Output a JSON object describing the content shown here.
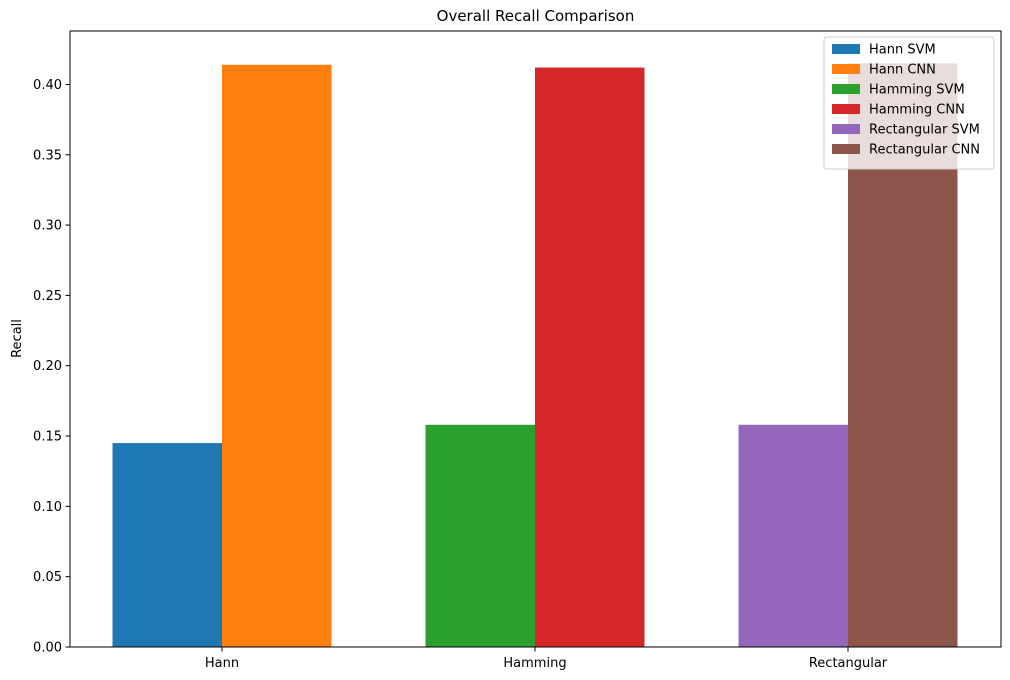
{
  "chart_data": {
    "type": "bar",
    "title": "Overall Recall Comparison",
    "xlabel": "",
    "ylabel": "Recall",
    "categories": [
      "Hann",
      "Hamming",
      "Rectangular"
    ],
    "ylim": [
      0,
      0.438
    ],
    "yticks": [
      "0.00",
      "0.05",
      "0.10",
      "0.15",
      "0.20",
      "0.25",
      "0.30",
      "0.35",
      "0.40"
    ],
    "grid": false,
    "legend_position": "top-right",
    "series": [
      {
        "name": "Hann SVM",
        "category": "Hann",
        "offset": "left",
        "value": 0.145,
        "color": "#1f77b4"
      },
      {
        "name": "Hann CNN",
        "category": "Hann",
        "offset": "right",
        "value": 0.414,
        "color": "#ff7f0e"
      },
      {
        "name": "Hamming SVM",
        "category": "Hamming",
        "offset": "left",
        "value": 0.158,
        "color": "#2ca02c"
      },
      {
        "name": "Hamming CNN",
        "category": "Hamming",
        "offset": "right",
        "value": 0.412,
        "color": "#d62728"
      },
      {
        "name": "Rectangular SVM",
        "category": "Rectangular",
        "offset": "left",
        "value": 0.158,
        "color": "#9467bd"
      },
      {
        "name": "Rectangular CNN",
        "category": "Rectangular",
        "offset": "right",
        "value": 0.415,
        "color": "#8c564b"
      }
    ]
  }
}
